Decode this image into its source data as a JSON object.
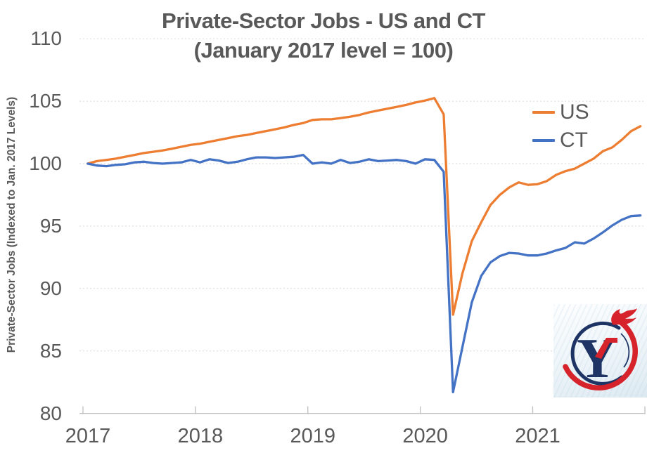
{
  "chart_data": {
    "type": "line",
    "title": "Private-Sector Jobs - US and CT",
    "subtitle": "(January 2017 level = 100)",
    "ylabel": "Private-Sector Jobs (Indexed to Jan. 2017 Levels)",
    "x_unit": "month",
    "x_range": [
      "Jan 2017",
      "Dec 2021"
    ],
    "x_tick_labels": [
      "2017",
      "2018",
      "2019",
      "2020",
      "2021"
    ],
    "y_ticks": [
      110,
      105,
      100,
      95,
      90,
      85,
      80
    ],
    "ylim": [
      80,
      110
    ],
    "grid": "horizontal-dotted",
    "legend_position": "inside-top-right",
    "grid_color": "#D9D9D9",
    "axis_color": "#BFBFBF",
    "text_color": "#595959",
    "series": [
      {
        "name": "US",
        "color": "#ED7D31",
        "values": [
          100,
          100.2,
          100.3,
          100.4,
          100.55,
          100.7,
          100.85,
          100.95,
          101.05,
          101.2,
          101.35,
          101.5,
          101.6,
          101.75,
          101.9,
          102.05,
          102.2,
          102.3,
          102.45,
          102.6,
          102.75,
          102.9,
          103.1,
          103.25,
          103.5,
          103.55,
          103.55,
          103.65,
          103.75,
          103.9,
          104.1,
          104.25,
          104.4,
          104.55,
          104.7,
          104.9,
          105.05,
          105.25,
          103.95,
          87.9,
          91.2,
          93.8,
          95.3,
          96.7,
          97.5,
          98.1,
          98.5,
          98.3,
          98.35,
          98.6,
          99.1,
          99.4,
          99.6,
          100.0,
          100.4,
          101.0,
          101.3,
          101.9,
          102.6,
          103.0
        ]
      },
      {
        "name": "CT",
        "color": "#4472C4",
        "values": [
          100,
          99.85,
          99.8,
          99.9,
          99.95,
          100.1,
          100.15,
          100.05,
          100.0,
          100.05,
          100.1,
          100.3,
          100.1,
          100.35,
          100.25,
          100.05,
          100.15,
          100.35,
          100.5,
          100.5,
          100.45,
          100.5,
          100.55,
          100.7,
          100.0,
          100.1,
          100.0,
          100.3,
          100.05,
          100.15,
          100.35,
          100.2,
          100.25,
          100.3,
          100.2,
          100.0,
          100.35,
          100.3,
          99.35,
          81.7,
          85.3,
          88.9,
          91.0,
          92.1,
          92.6,
          92.85,
          92.8,
          92.65,
          92.65,
          92.8,
          93.05,
          93.25,
          93.7,
          93.6,
          94.0,
          94.5,
          95.05,
          95.5,
          95.8,
          95.85
        ]
      }
    ]
  },
  "logo": {
    "name": "yankee-institute-torch-logo",
    "letter": "Y",
    "navy": "#1E3464",
    "red": "#D6222A"
  }
}
